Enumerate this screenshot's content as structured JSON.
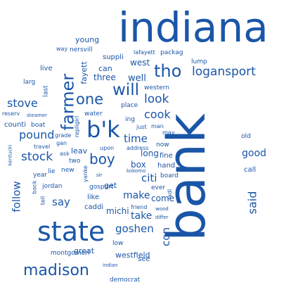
{
  "word_cloud": {
    "color": "#1a56a8",
    "words": [
      "indiana",
      "bank",
      "state",
      "b'k",
      "farmer",
      "madison",
      "tho",
      "one",
      "will",
      "logansport",
      "stock",
      "boy",
      "stove",
      "follow",
      "pound",
      "goshen",
      "said",
      "con",
      "look",
      "cook",
      "time",
      "say",
      "citi",
      "make",
      "take",
      "three",
      "fayett",
      "can",
      "west",
      "well",
      "young",
      "nersvill",
      "suppli",
      "lafayett",
      "packag",
      "lump",
      "way",
      "live",
      "larg",
      "last",
      "western",
      "place",
      "water",
      "ing",
      "just",
      "man",
      "may",
      "reserv",
      "steamer",
      "counti",
      "boat",
      "repligirl",
      "grade",
      "gan",
      "travel",
      "ask",
      "kentucki",
      "lie",
      "new",
      "year",
      "back",
      "jordan",
      "tell",
      "two",
      "leav",
      "upon",
      "address",
      "sir",
      "kokomo",
      "long",
      "fine",
      "box",
      "hand",
      "now",
      "board",
      "ever",
      "ladi",
      "get",
      "gosport",
      "like",
      "caddi",
      "michi",
      "friend",
      "wood",
      "differ",
      "come",
      "call",
      "good",
      "old",
      "low",
      "montgomeri",
      "great",
      "westfield",
      "see",
      "indian",
      "democrat",
      "yanke",
      "best",
      "green"
    ]
  }
}
